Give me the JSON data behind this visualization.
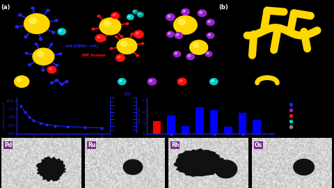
{
  "bg_color": "#000000",
  "figsize": [
    4.8,
    2.7
  ],
  "dpi": 100,
  "gold_color": "#FFD700",
  "red_np_color": "#ff1111",
  "blue_ligand_color": "#2222ff",
  "purple_np_color": "#9922cc",
  "cyan_np_color": "#00cccc",
  "teal_np_color": "#009999",
  "magenta_np_color": "#cc22cc",
  "text_blue": "4H₂≡BH₄⁻+H₂",
  "text_red": "NP fusion",
  "gold_aerogel_color": "#FFD700",
  "em_labels": [
    "Pd",
    "Ru",
    "Rh",
    "Os"
  ],
  "em_label_bg": "#7b2d8b",
  "em_label_color": "#ffffff",
  "bar_values_blue": [
    3.2,
    1.4,
    4.8,
    4.3,
    1.2,
    3.8,
    2.5
  ],
  "bar_values_red": [
    2.2
  ],
  "bar_color_blue": "#0000ff",
  "bar_color_red": "#ff0000",
  "scatter_x": [
    0.5,
    1.0,
    1.5,
    2.0,
    2.8,
    3.5,
    4.5,
    6.0,
    8.0,
    10.0
  ],
  "scatter_y": [
    8.5,
    6.5,
    5.0,
    4.0,
    3.2,
    2.8,
    2.4,
    2.1,
    1.9,
    1.7
  ]
}
